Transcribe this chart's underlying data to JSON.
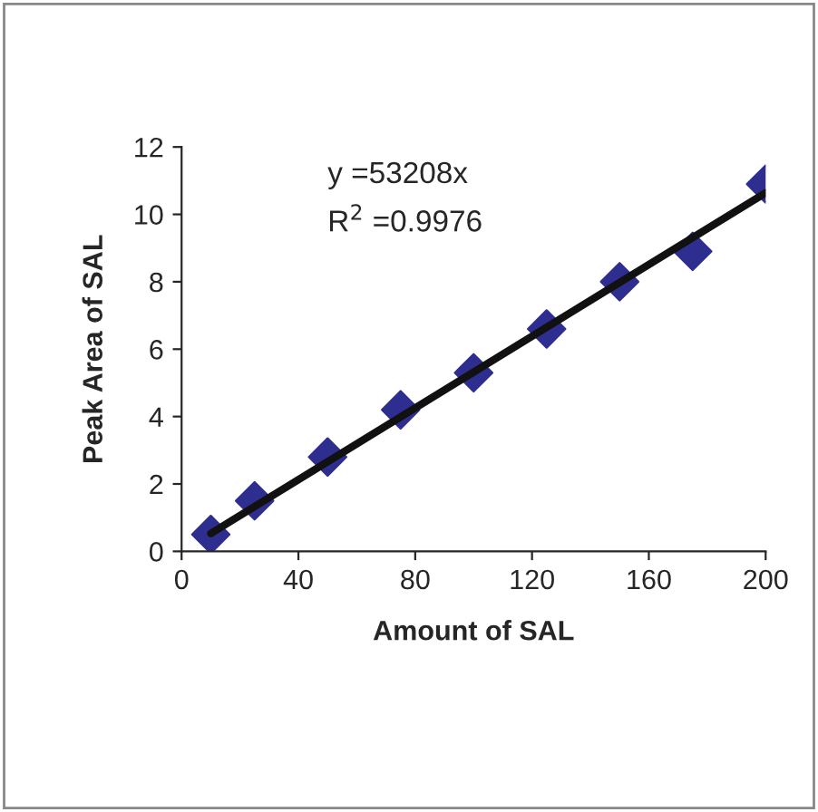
{
  "chart_data": {
    "type": "scatter",
    "xlabel": "Amount of SAL",
    "ylabel": "Peak Area of SAL",
    "x": [
      10,
      25,
      50,
      75,
      100,
      125,
      150,
      175,
      200
    ],
    "series": [
      {
        "color": "#2e2e90",
        "marker": "diamond",
        "values": [
          0.5,
          1.5,
          2.8,
          4.2,
          5.3,
          6.6,
          8.0,
          8.9,
          10.9
        ]
      },
      {
        "type": "line",
        "color": "#111111",
        "marker": "none",
        "line_style": "solid",
        "x": [
          10,
          200
        ],
        "values": [
          0.53,
          10.64
        ]
      }
    ],
    "xlim": [
      0,
      200
    ],
    "ylim": [
      0,
      12
    ],
    "xticks": [
      0,
      40,
      80,
      120,
      160,
      200
    ],
    "yticks": [
      0,
      2,
      4,
      6,
      8,
      10,
      12
    ],
    "annotations": [
      "y =53208x",
      "R$^{2}$ =0.9976"
    ],
    "grid": false,
    "legend": false
  }
}
